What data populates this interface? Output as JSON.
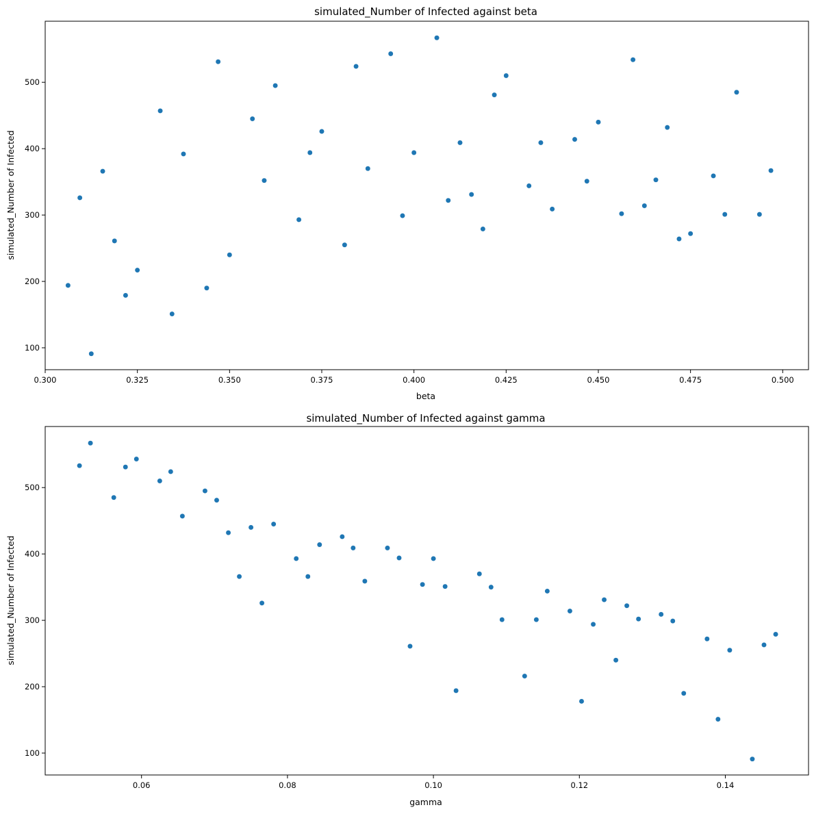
{
  "chart_data": [
    {
      "type": "scatter",
      "title": "simulated_Number of Infected against beta",
      "xlabel": "beta",
      "ylabel": "simulated_Number of Infected",
      "xlim": [
        0.3,
        0.507
      ],
      "ylim": [
        67,
        592
      ],
      "xticks": [
        0.3,
        0.325,
        0.35,
        0.375,
        0.4,
        0.425,
        0.45,
        0.475,
        0.5
      ],
      "xtick_labels": [
        "0.300",
        "0.325",
        "0.350",
        "0.375",
        "0.400",
        "0.425",
        "0.450",
        "0.475",
        "0.500"
      ],
      "yticks": [
        100,
        200,
        300,
        400,
        500
      ],
      "ytick_labels": [
        "100",
        "200",
        "300",
        "400",
        "500"
      ],
      "marker_color": "#1f77b4",
      "grid": false,
      "points": [
        {
          "x": 0.3062,
          "y": 194
        },
        {
          "x": 0.3094,
          "y": 326
        },
        {
          "x": 0.3125,
          "y": 91
        },
        {
          "x": 0.3156,
          "y": 366
        },
        {
          "x": 0.3188,
          "y": 261
        },
        {
          "x": 0.3218,
          "y": 179
        },
        {
          "x": 0.325,
          "y": 217
        },
        {
          "x": 0.3312,
          "y": 457
        },
        {
          "x": 0.3344,
          "y": 151
        },
        {
          "x": 0.3375,
          "y": 392
        },
        {
          "x": 0.3438,
          "y": 190
        },
        {
          "x": 0.3469,
          "y": 531
        },
        {
          "x": 0.35,
          "y": 240
        },
        {
          "x": 0.3562,
          "y": 445
        },
        {
          "x": 0.3594,
          "y": 352
        },
        {
          "x": 0.3624,
          "y": 495
        },
        {
          "x": 0.3688,
          "y": 293
        },
        {
          "x": 0.3718,
          "y": 394
        },
        {
          "x": 0.375,
          "y": 426
        },
        {
          "x": 0.3812,
          "y": 255
        },
        {
          "x": 0.3843,
          "y": 524
        },
        {
          "x": 0.3875,
          "y": 370
        },
        {
          "x": 0.3937,
          "y": 543
        },
        {
          "x": 0.3969,
          "y": 299
        },
        {
          "x": 0.4,
          "y": 394
        },
        {
          "x": 0.4062,
          "y": 567
        },
        {
          "x": 0.4093,
          "y": 322
        },
        {
          "x": 0.4125,
          "y": 409
        },
        {
          "x": 0.4156,
          "y": 331
        },
        {
          "x": 0.4187,
          "y": 279
        },
        {
          "x": 0.4218,
          "y": 481
        },
        {
          "x": 0.425,
          "y": 510
        },
        {
          "x": 0.4312,
          "y": 344
        },
        {
          "x": 0.4344,
          "y": 409
        },
        {
          "x": 0.4375,
          "y": 309
        },
        {
          "x": 0.4436,
          "y": 414
        },
        {
          "x": 0.4469,
          "y": 351
        },
        {
          "x": 0.45,
          "y": 440
        },
        {
          "x": 0.4563,
          "y": 302
        },
        {
          "x": 0.4594,
          "y": 534
        },
        {
          "x": 0.4625,
          "y": 314
        },
        {
          "x": 0.4656,
          "y": 353
        },
        {
          "x": 0.4687,
          "y": 432
        },
        {
          "x": 0.4719,
          "y": 264
        },
        {
          "x": 0.475,
          "y": 272
        },
        {
          "x": 0.4812,
          "y": 359
        },
        {
          "x": 0.4843,
          "y": 301
        },
        {
          "x": 0.4875,
          "y": 485
        },
        {
          "x": 0.4937,
          "y": 301
        },
        {
          "x": 0.4968,
          "y": 367
        }
      ]
    },
    {
      "type": "scatter",
      "title": "simulated_Number of Infected against gamma",
      "xlabel": "gamma",
      "ylabel": "simulated_Number of Infected",
      "xlim": [
        0.0468,
        0.1514
      ],
      "ylim": [
        67,
        592
      ],
      "xticks": [
        0.06,
        0.08,
        0.1,
        0.12,
        0.14
      ],
      "xtick_labels": [
        "0.06",
        "0.08",
        "0.10",
        "0.12",
        "0.14"
      ],
      "yticks": [
        100,
        200,
        300,
        400,
        500
      ],
      "ytick_labels": [
        "100",
        "200",
        "300",
        "400",
        "500"
      ],
      "marker_color": "#1f77b4",
      "grid": false,
      "points": [
        {
          "x": 0.0515,
          "y": 533
        },
        {
          "x": 0.053,
          "y": 567
        },
        {
          "x": 0.0562,
          "y": 485
        },
        {
          "x": 0.0578,
          "y": 531
        },
        {
          "x": 0.0593,
          "y": 543
        },
        {
          "x": 0.0625,
          "y": 510
        },
        {
          "x": 0.064,
          "y": 524
        },
        {
          "x": 0.0656,
          "y": 457
        },
        {
          "x": 0.0687,
          "y": 495
        },
        {
          "x": 0.0703,
          "y": 481
        },
        {
          "x": 0.0719,
          "y": 432
        },
        {
          "x": 0.0734,
          "y": 366
        },
        {
          "x": 0.075,
          "y": 440
        },
        {
          "x": 0.0765,
          "y": 326
        },
        {
          "x": 0.0781,
          "y": 445
        },
        {
          "x": 0.0812,
          "y": 393
        },
        {
          "x": 0.0828,
          "y": 366
        },
        {
          "x": 0.0844,
          "y": 414
        },
        {
          "x": 0.0875,
          "y": 426
        },
        {
          "x": 0.089,
          "y": 409
        },
        {
          "x": 0.0906,
          "y": 359
        },
        {
          "x": 0.0937,
          "y": 409
        },
        {
          "x": 0.0953,
          "y": 394
        },
        {
          "x": 0.0968,
          "y": 261
        },
        {
          "x": 0.0985,
          "y": 354
        },
        {
          "x": 0.1,
          "y": 393
        },
        {
          "x": 0.1016,
          "y": 351
        },
        {
          "x": 0.1031,
          "y": 194
        },
        {
          "x": 0.1063,
          "y": 370
        },
        {
          "x": 0.1079,
          "y": 350
        },
        {
          "x": 0.1094,
          "y": 301
        },
        {
          "x": 0.1125,
          "y": 216
        },
        {
          "x": 0.1141,
          "y": 301
        },
        {
          "x": 0.1156,
          "y": 344
        },
        {
          "x": 0.1187,
          "y": 314
        },
        {
          "x": 0.1203,
          "y": 178
        },
        {
          "x": 0.1219,
          "y": 294
        },
        {
          "x": 0.1234,
          "y": 331
        },
        {
          "x": 0.125,
          "y": 240
        },
        {
          "x": 0.1265,
          "y": 322
        },
        {
          "x": 0.1281,
          "y": 302
        },
        {
          "x": 0.1312,
          "y": 309
        },
        {
          "x": 0.1328,
          "y": 299
        },
        {
          "x": 0.1343,
          "y": 190
        },
        {
          "x": 0.1375,
          "y": 272
        },
        {
          "x": 0.139,
          "y": 151
        },
        {
          "x": 0.1406,
          "y": 255
        },
        {
          "x": 0.1437,
          "y": 91
        },
        {
          "x": 0.1453,
          "y": 263
        },
        {
          "x": 0.1469,
          "y": 279
        }
      ]
    }
  ]
}
